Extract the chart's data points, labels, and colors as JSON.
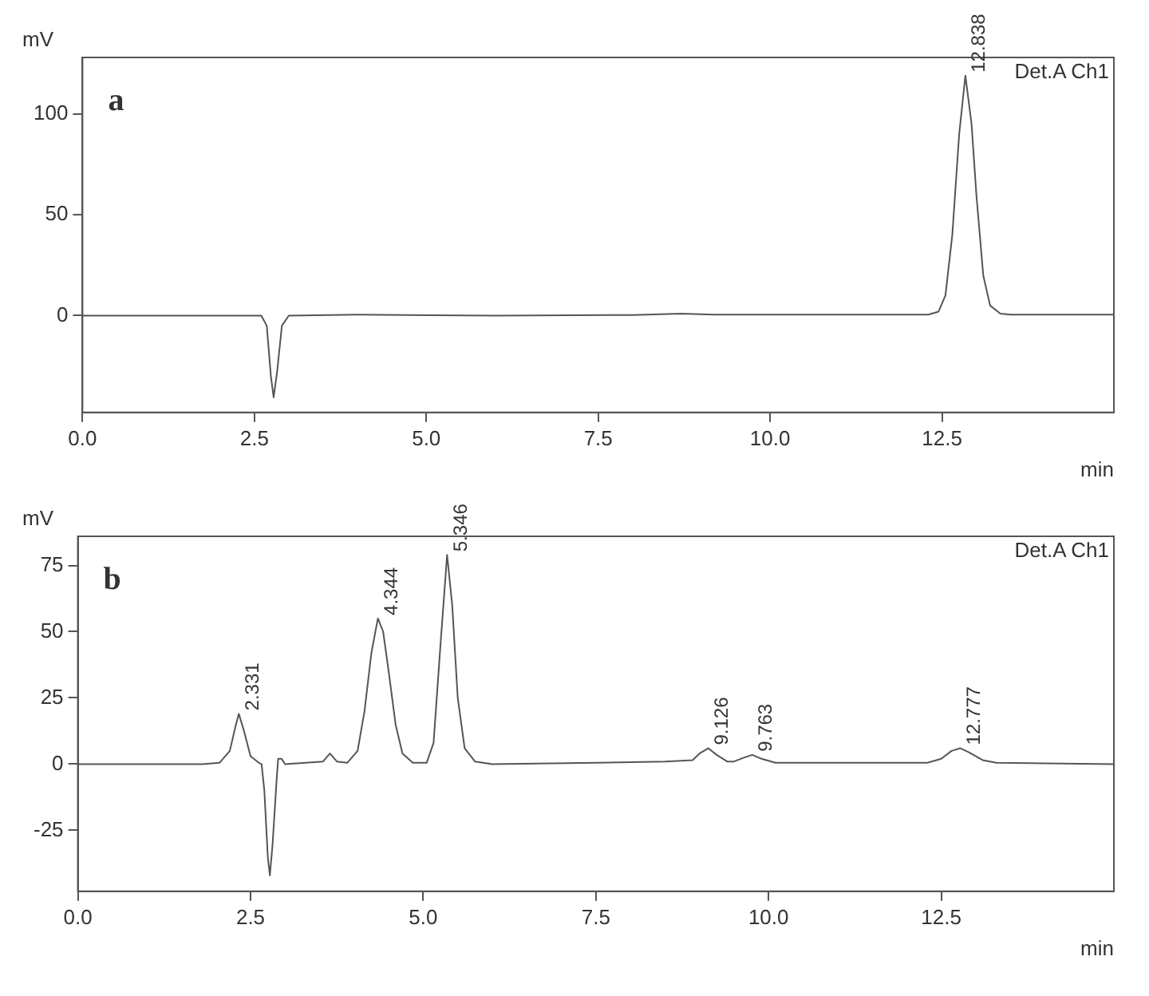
{
  "chart_data": [
    {
      "type": "line",
      "title": "a",
      "subtitle": "Det.A Ch1",
      "xlabel": "min",
      "ylabel": "mV",
      "marker": "none",
      "grid": false,
      "legend": false,
      "xlim": [
        0,
        15
      ],
      "xticks": [
        {
          "value": 0,
          "label": "0.0"
        },
        {
          "value": 2.5,
          "label": "2.5"
        },
        {
          "value": 5,
          "label": "5.0"
        },
        {
          "value": 7.5,
          "label": "7.5"
        },
        {
          "value": 10,
          "label": "10.0"
        },
        {
          "value": 12.5,
          "label": "12.5"
        }
      ],
      "ylim": [
        -48,
        128
      ],
      "yticks": [
        0,
        50,
        100
      ],
      "series": [
        {
          "color": "#555555",
          "x": [
            0,
            2.0,
            2.6,
            2.68,
            2.74,
            2.78,
            2.83,
            2.9,
            3.0,
            4.0,
            6.0,
            8.0,
            8.7,
            9.2,
            12.3,
            12.45,
            12.55,
            12.65,
            12.75,
            12.84,
            12.93,
            13.0,
            13.1,
            13.2,
            13.35,
            13.5,
            15
          ],
          "values": [
            0,
            0,
            0,
            -5,
            -30,
            -40.5,
            -28,
            -5,
            0,
            0.5,
            0,
            0.3,
            1,
            0.5,
            0.5,
            2,
            10,
            40,
            90,
            119,
            95,
            60,
            20,
            5,
            1,
            0.5,
            0.5
          ]
        }
      ],
      "annotations": [
        {
          "text": "12.838",
          "x": 12.838,
          "y": 119
        }
      ]
    },
    {
      "type": "line",
      "title": "b",
      "subtitle": "Det.A Ch1",
      "xlabel": "min",
      "ylabel": "mV",
      "marker": "none",
      "grid": false,
      "legend": false,
      "xlim": [
        0,
        15
      ],
      "xticks": [
        {
          "value": 0,
          "label": "0.0"
        },
        {
          "value": 2.5,
          "label": "2.5"
        },
        {
          "value": 5,
          "label": "5.0"
        },
        {
          "value": 7.5,
          "label": "7.5"
        },
        {
          "value": 10,
          "label": "10.0"
        },
        {
          "value": 12.5,
          "label": "12.5"
        }
      ],
      "ylim": [
        -48,
        86
      ],
      "yticks": [
        -25,
        0,
        25,
        50,
        75
      ],
      "series": [
        {
          "color": "#555555",
          "x": [
            0,
            1.8,
            2.05,
            2.2,
            2.28,
            2.33,
            2.4,
            2.5,
            2.62,
            2.66,
            2.7,
            2.75,
            2.78,
            2.82,
            2.88,
            2.9,
            2.95,
            3.0,
            3.3,
            3.55,
            3.65,
            3.75,
            3.9,
            4.05,
            4.15,
            4.25,
            4.344,
            4.42,
            4.5,
            4.6,
            4.7,
            4.85,
            5.05,
            5.15,
            5.25,
            5.346,
            5.42,
            5.5,
            5.6,
            5.75,
            6.0,
            7.5,
            8.5,
            8.9,
            9.0,
            9.126,
            9.25,
            9.4,
            9.5,
            9.65,
            9.763,
            9.9,
            10.1,
            11.6,
            12.3,
            12.5,
            12.65,
            12.777,
            12.9,
            13.1,
            13.3,
            15
          ],
          "values": [
            0,
            0,
            0.5,
            5,
            14,
            19,
            13,
            3,
            0.5,
            0,
            -10,
            -35,
            -42,
            -30,
            -5,
            2,
            2,
            0,
            0.5,
            1,
            4,
            1,
            0.5,
            5,
            20,
            42,
            55,
            50,
            35,
            15,
            4,
            0.5,
            0.5,
            8,
            45,
            79,
            60,
            25,
            6,
            1,
            0,
            0.5,
            1,
            1.5,
            4,
            6,
            3.5,
            1,
            1,
            2.5,
            3.5,
            2,
            0.5,
            0.5,
            0.5,
            2,
            5,
            6,
            4.5,
            1.5,
            0.5,
            0
          ]
        }
      ],
      "annotations": [
        {
          "text": "2.331",
          "x": 2.331,
          "y": 19
        },
        {
          "text": "4.344",
          "x": 4.344,
          "y": 55
        },
        {
          "text": "5.346",
          "x": 5.346,
          "y": 79
        },
        {
          "text": "9.126",
          "x": 9.126,
          "y": 6
        },
        {
          "text": "9.763",
          "x": 9.763,
          "y": 3.5
        },
        {
          "text": "12.777",
          "x": 12.777,
          "y": 6
        }
      ]
    }
  ]
}
